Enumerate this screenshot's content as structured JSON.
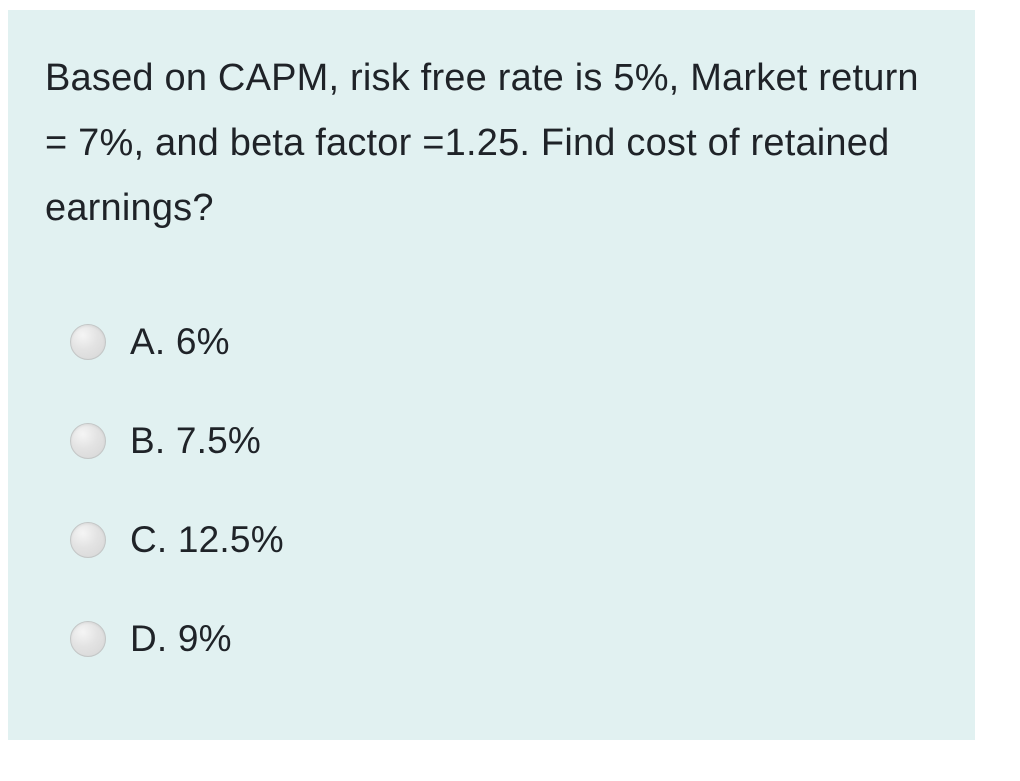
{
  "question": {
    "text": "Based on CAPM, risk free rate is 5%, Market return = 7%, and beta factor =1.25. Find cost of retained earnings?"
  },
  "options": [
    {
      "label": "A. 6%"
    },
    {
      "label": "B. 7.5%"
    },
    {
      "label": "C. 12.5%"
    },
    {
      "label": "D. 9%"
    }
  ],
  "colors": {
    "card_background": "#e1f1f1",
    "page_background": "#ffffff",
    "text": "#1f2328",
    "radio_fill": "#dcdcdc",
    "radio_border": "#c3c6c6"
  }
}
